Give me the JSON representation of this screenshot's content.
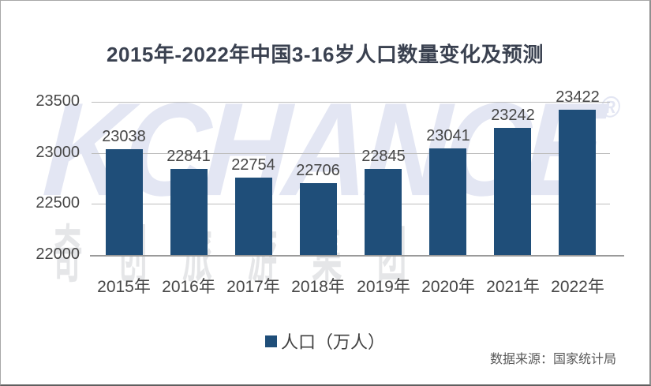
{
  "title": "2015年-2022年中国3-16岁人口数量变化及预测",
  "watermark": {
    "brand": "KCHANCE",
    "reg_mark": "®",
    "cjk": "奇创旅游集团"
  },
  "legend": {
    "label": "人口（万人）"
  },
  "source": "数据来源：国家统计局",
  "colors": {
    "bar": "#1F4E79",
    "grid": "#bdbdbd",
    "axis": "#9a9a9a",
    "tick_label": "#464646",
    "title": "#3a4150",
    "watermark": "#e3e6f3"
  },
  "chart_data": {
    "type": "bar",
    "title": "2015年-2022年中国3-16岁人口数量变化及预测",
    "categories": [
      "2015年",
      "2016年",
      "2017年",
      "2018年",
      "2019年",
      "2020年",
      "2021年",
      "2022年"
    ],
    "values": [
      23038,
      22841,
      22754,
      22706,
      22845,
      23041,
      23242,
      23422
    ],
    "series_name": "人口（万人）",
    "xlabel": "",
    "ylabel": "人口（万人）",
    "ylim": [
      22000,
      23500
    ],
    "yticks": [
      22000,
      22500,
      23000,
      23500
    ],
    "grid": true,
    "data_labels": true,
    "legend_position": "bottom"
  }
}
